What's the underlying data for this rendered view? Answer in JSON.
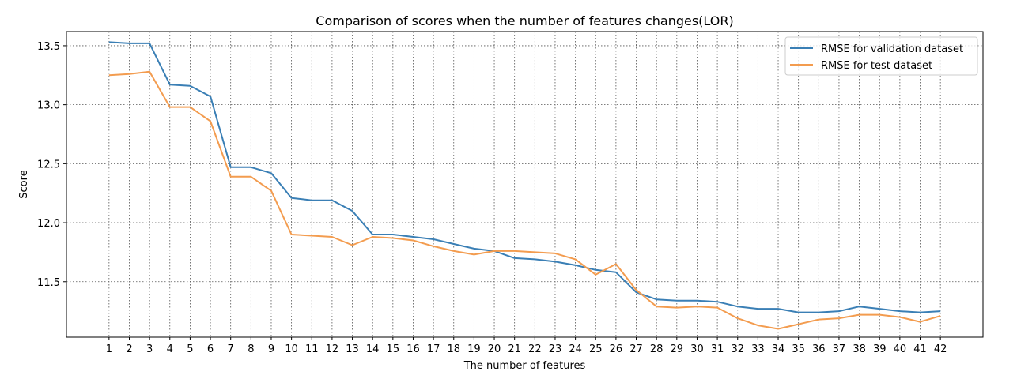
{
  "chart_data": {
    "type": "line",
    "title": "Comparison of scores when the number of features changes(LOR)",
    "xlabel": "The number of features",
    "ylabel": "Score",
    "x": [
      1,
      2,
      3,
      4,
      5,
      6,
      7,
      8,
      9,
      10,
      11,
      12,
      13,
      14,
      15,
      16,
      17,
      18,
      19,
      20,
      21,
      22,
      23,
      24,
      25,
      26,
      27,
      28,
      29,
      30,
      31,
      32,
      33,
      34,
      35,
      36,
      37,
      38,
      39,
      40,
      41,
      42
    ],
    "xlim": [
      -1.1,
      44.1
    ],
    "ylim": [
      11.03,
      13.62
    ],
    "yticks": [
      11.5,
      12.0,
      12.5,
      13.0,
      13.5
    ],
    "ytick_labels": [
      "11.5",
      "12.0",
      "12.5",
      "13.0",
      "13.5"
    ],
    "grid": true,
    "legend_position": "top-right",
    "series": [
      {
        "name": "RMSE for validation dataset",
        "color": "#3a7fb5",
        "values": [
          13.53,
          13.52,
          13.52,
          13.17,
          13.16,
          13.07,
          12.47,
          12.47,
          12.42,
          12.21,
          12.19,
          12.19,
          12.1,
          11.9,
          11.9,
          11.88,
          11.86,
          11.82,
          11.78,
          11.76,
          11.7,
          11.69,
          11.67,
          11.64,
          11.6,
          11.58,
          11.41,
          11.35,
          11.34,
          11.34,
          11.33,
          11.29,
          11.27,
          11.27,
          11.24,
          11.24,
          11.25,
          11.29,
          11.27,
          11.25,
          11.24,
          11.25
        ]
      },
      {
        "name": "RMSE for test dataset",
        "color": "#f39c4f",
        "values": [
          13.25,
          13.26,
          13.28,
          12.98,
          12.98,
          12.86,
          12.39,
          12.39,
          12.27,
          11.9,
          11.89,
          11.88,
          11.81,
          11.88,
          11.87,
          11.85,
          11.8,
          11.76,
          11.73,
          11.76,
          11.76,
          11.75,
          11.74,
          11.69,
          11.56,
          11.65,
          11.43,
          11.29,
          11.28,
          11.29,
          11.28,
          11.19,
          11.13,
          11.1,
          11.14,
          11.18,
          11.19,
          11.22,
          11.22,
          11.2,
          11.16,
          11.21
        ]
      }
    ]
  }
}
